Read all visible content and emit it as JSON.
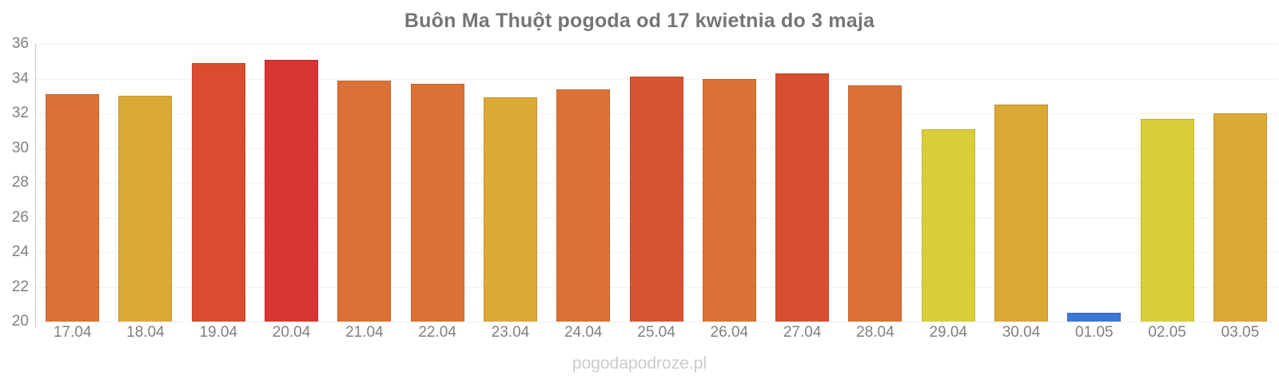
{
  "title": "Buôn Ma Thuột pogoda od 17 kwietnia do 3 maja",
  "watermark": "pogodapodroze.pl",
  "colors": {
    "background": "#ffffff",
    "title_text": "#757575",
    "tick_text": "#808080",
    "axis_line": "#cccccc",
    "gridline": "#e4e4e4",
    "watermark_text": "#cbcbcb"
  },
  "chart_data": {
    "type": "bar",
    "title": "Buôn Ma Thuột pogoda od 17 kwietnia do 3 maja",
    "xlabel": "",
    "ylabel": "",
    "categories": [
      "17.04",
      "18.04",
      "19.04",
      "20.04",
      "21.04",
      "22.04",
      "23.04",
      "24.04",
      "25.04",
      "26.04",
      "27.04",
      "28.04",
      "29.04",
      "30.04",
      "01.05",
      "02.05",
      "03.05"
    ],
    "values": [
      33.1,
      33.0,
      34.9,
      35.1,
      33.9,
      33.7,
      32.9,
      33.4,
      34.1,
      34.0,
      34.3,
      33.6,
      31.1,
      32.5,
      20.5,
      31.7,
      32.0
    ],
    "bar_colors": [
      "#db7134",
      "#dba936",
      "#d94c2f",
      "#d83534",
      "#db7134",
      "#db7134",
      "#dba936",
      "#db7134",
      "#d85332",
      "#db7134",
      "#d84e30",
      "#db7134",
      "#d9cd3a",
      "#d9a835",
      "#3b77d8",
      "#d9cd3a",
      "#dba936"
    ],
    "ylim": [
      20,
      36
    ],
    "yticks": [
      20,
      22,
      24,
      26,
      28,
      30,
      32,
      34,
      36
    ],
    "grid": "horizontal-dotted",
    "legend": "none"
  }
}
